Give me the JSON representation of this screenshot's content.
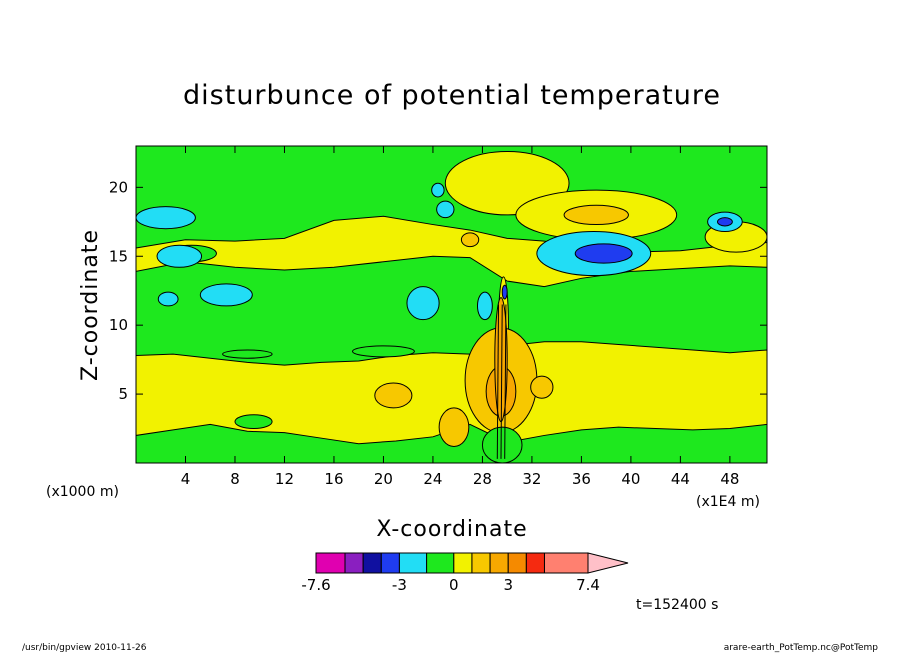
{
  "chart_data": {
    "type": "heatmap",
    "title": "disturbunce of potential temperature",
    "xlabel": "X-coordinate",
    "ylabel": "Z-coordinate",
    "x_unit_left": "(x1000 m)",
    "x_unit_right": "(x1E4 m)",
    "xlim": [
      0,
      51
    ],
    "ylim": [
      0,
      23
    ],
    "x_ticks": [
      4,
      8,
      12,
      16,
      20,
      24,
      28,
      32,
      36,
      40,
      44,
      48
    ],
    "y_ticks": [
      5,
      10,
      15,
      20
    ],
    "time_label": "t=152400 s",
    "colorbar": {
      "range": [
        -7.6,
        7.4
      ],
      "tick_labels": [
        "-7.6",
        "-3",
        "0",
        "3",
        "7.4"
      ],
      "tick_values": [
        -7.6,
        -3,
        0,
        3,
        7.4
      ],
      "bins": [
        {
          "from": -7.6,
          "to": -6.0,
          "color": "#e000b0"
        },
        {
          "from": -6.0,
          "to": -5.0,
          "color": "#8a1fc0"
        },
        {
          "from": -5.0,
          "to": -4.0,
          "color": "#1010a0"
        },
        {
          "from": -4.0,
          "to": -3.0,
          "color": "#1f3cf0"
        },
        {
          "from": -3.0,
          "to": -1.5,
          "color": "#22ddf5"
        },
        {
          "from": -1.5,
          "to": 0.0,
          "color": "#1ee81e"
        },
        {
          "from": 0.0,
          "to": 1.0,
          "color": "#f2f200"
        },
        {
          "from": 1.0,
          "to": 2.0,
          "color": "#f7c800"
        },
        {
          "from": 2.0,
          "to": 3.0,
          "color": "#f7a800"
        },
        {
          "from": 3.0,
          "to": 4.0,
          "color": "#f58a00"
        },
        {
          "from": 4.0,
          "to": 5.0,
          "color": "#f52a10"
        },
        {
          "from": 5.0,
          "to": 7.4,
          "color": "#ff8070"
        },
        {
          "from": 7.4,
          "to": 8.4,
          "color": "#ffc0c8",
          "extension": true
        }
      ]
    },
    "background_value_color": "#1ee81e",
    "bands": [
      {
        "name": "near-surface warm layer",
        "color": "#f2f200",
        "top": [
          [
            0,
            7.8
          ],
          [
            3,
            7.9
          ],
          [
            6,
            7.6
          ],
          [
            9,
            7.3
          ],
          [
            12,
            7.1
          ],
          [
            15,
            7.3
          ],
          [
            18,
            7.4
          ],
          [
            21,
            7.8
          ],
          [
            24,
            8.0
          ],
          [
            27,
            7.9
          ],
          [
            30,
            8.5
          ],
          [
            33,
            8.8
          ],
          [
            36,
            8.8
          ],
          [
            39,
            8.6
          ],
          [
            42,
            8.4
          ],
          [
            45,
            8.2
          ],
          [
            48,
            8.0
          ],
          [
            51,
            8.2
          ]
        ],
        "bottom": [
          [
            0,
            2.0
          ],
          [
            3,
            2.4
          ],
          [
            6,
            2.8
          ],
          [
            9,
            2.3
          ],
          [
            12,
            2.2
          ],
          [
            15,
            1.8
          ],
          [
            18,
            1.4
          ],
          [
            21,
            1.6
          ],
          [
            24,
            1.9
          ],
          [
            27,
            2.8
          ],
          [
            30,
            1.5
          ],
          [
            33,
            2.0
          ],
          [
            36,
            2.4
          ],
          [
            39,
            2.6
          ],
          [
            42,
            2.5
          ],
          [
            45,
            2.4
          ],
          [
            48,
            2.5
          ],
          [
            51,
            2.8
          ]
        ]
      },
      {
        "name": "mid-level warm layer",
        "color": "#f2f200",
        "top": [
          [
            0,
            15.6
          ],
          [
            4,
            16.2
          ],
          [
            8,
            16.1
          ],
          [
            12,
            16.3
          ],
          [
            16,
            17.6
          ],
          [
            20,
            17.9
          ],
          [
            24,
            17.3
          ],
          [
            27,
            16.9
          ],
          [
            30,
            16.3
          ],
          [
            33,
            16.1
          ],
          [
            36,
            15.6
          ],
          [
            40,
            15.3
          ],
          [
            44,
            15.4
          ],
          [
            48,
            15.8
          ],
          [
            51,
            16.0
          ]
        ],
        "bottom": [
          [
            0,
            13.9
          ],
          [
            4,
            14.6
          ],
          [
            8,
            14.2
          ],
          [
            12,
            14.0
          ],
          [
            16,
            14.2
          ],
          [
            20,
            14.6
          ],
          [
            24,
            15.0
          ],
          [
            27,
            14.9
          ],
          [
            30,
            13.2
          ],
          [
            33,
            12.8
          ],
          [
            36,
            13.4
          ],
          [
            40,
            13.9
          ],
          [
            44,
            14.1
          ],
          [
            48,
            14.3
          ],
          [
            51,
            14.2
          ]
        ]
      }
    ],
    "blobs": [
      {
        "cx": 30.0,
        "cy": 20.3,
        "rx": 5.0,
        "ry": 2.3,
        "color": "#f2f200"
      },
      {
        "cx": 37.2,
        "cy": 18.0,
        "rx": 6.5,
        "ry": 1.8,
        "color": "#f2f200"
      },
      {
        "cx": 37.2,
        "cy": 18.0,
        "rx": 2.6,
        "ry": 0.7,
        "color": "#f7c800"
      },
      {
        "cx": 48.5,
        "cy": 16.4,
        "rx": 2.5,
        "ry": 1.1,
        "color": "#f2f200"
      },
      {
        "cx": 37.0,
        "cy": 15.2,
        "rx": 4.6,
        "ry": 1.6,
        "color": "#22ddf5"
      },
      {
        "cx": 37.8,
        "cy": 15.2,
        "rx": 2.3,
        "ry": 0.7,
        "color": "#1f3cf0"
      },
      {
        "cx": 47.6,
        "cy": 17.5,
        "rx": 1.4,
        "ry": 0.7,
        "color": "#22ddf5"
      },
      {
        "cx": 47.6,
        "cy": 17.5,
        "rx": 0.6,
        "ry": 0.3,
        "color": "#1f3cf0"
      },
      {
        "cx": 2.4,
        "cy": 17.8,
        "rx": 2.4,
        "ry": 0.8,
        "color": "#22ddf5"
      },
      {
        "cx": 3.5,
        "cy": 15.0,
        "rx": 1.8,
        "ry": 0.8,
        "color": "#22ddf5"
      },
      {
        "cx": 7.3,
        "cy": 12.2,
        "rx": 2.1,
        "ry": 0.8,
        "color": "#22ddf5"
      },
      {
        "cx": 2.6,
        "cy": 11.9,
        "rx": 0.8,
        "ry": 0.5,
        "color": "#22ddf5"
      },
      {
        "cx": 23.2,
        "cy": 11.6,
        "rx": 1.3,
        "ry": 1.2,
        "color": "#22ddf5"
      },
      {
        "cx": 24.4,
        "cy": 19.8,
        "rx": 0.5,
        "ry": 0.5,
        "color": "#22ddf5"
      },
      {
        "cx": 25.0,
        "cy": 18.4,
        "rx": 0.7,
        "ry": 0.6,
        "color": "#22ddf5"
      },
      {
        "cx": 28.2,
        "cy": 11.4,
        "rx": 0.6,
        "ry": 1.0,
        "color": "#22ddf5"
      },
      {
        "cx": 27.0,
        "cy": 16.2,
        "rx": 0.7,
        "ry": 0.5,
        "color": "#f7c800"
      },
      {
        "cx": 29.7,
        "cy": 10.0,
        "rx": 0.4,
        "ry": 3.5,
        "color": "#f2f200"
      },
      {
        "cx": 29.5,
        "cy": 6.0,
        "rx": 2.9,
        "ry": 3.8,
        "color": "#f7c800"
      },
      {
        "cx": 29.5,
        "cy": 5.2,
        "rx": 1.2,
        "ry": 1.8,
        "color": "#f7a800"
      },
      {
        "cx": 29.5,
        "cy": 7.5,
        "rx": 0.5,
        "ry": 4.5,
        "color": "#f7a800"
      },
      {
        "cx": 20.8,
        "cy": 4.9,
        "rx": 1.5,
        "ry": 0.9,
        "color": "#f7c800"
      },
      {
        "cx": 25.7,
        "cy": 2.6,
        "rx": 1.2,
        "ry": 1.4,
        "color": "#f7c800"
      },
      {
        "cx": 29.6,
        "cy": 1.3,
        "rx": 1.6,
        "ry": 1.3,
        "color": "#1ee81e"
      },
      {
        "cx": 32.8,
        "cy": 5.5,
        "rx": 0.9,
        "ry": 0.8,
        "color": "#f7c800"
      },
      {
        "cx": 29.8,
        "cy": 12.4,
        "rx": 0.2,
        "ry": 0.5,
        "color": "#1f3cf0"
      }
    ],
    "green_patches": [
      {
        "cx": 20.0,
        "cy": 8.1,
        "rx": 2.5,
        "ry": 0.4
      },
      {
        "cx": 9.0,
        "cy": 7.9,
        "rx": 2.0,
        "ry": 0.3
      },
      {
        "cx": 4.5,
        "cy": 15.2,
        "rx": 2.0,
        "ry": 0.6
      },
      {
        "cx": 9.5,
        "cy": 3.0,
        "rx": 1.5,
        "ry": 0.5
      }
    ]
  },
  "footer": {
    "left": "/usr/bin/gpview   2010-11-26",
    "right": "arare-earth_PotTemp.nc@PotTemp"
  }
}
